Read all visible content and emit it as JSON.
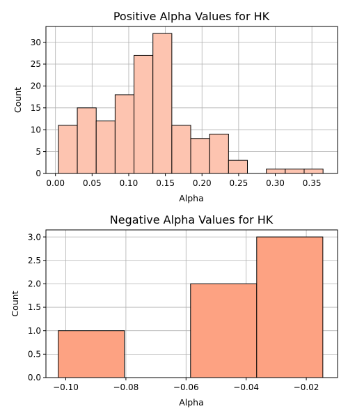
{
  "chart_data": [
    {
      "type": "bar",
      "title": "Positive Alpha Values for HK",
      "xlabel": "Alpha",
      "ylabel": "Count",
      "xlim": [
        -0.013,
        0.385
      ],
      "ylim": [
        0,
        33.6
      ],
      "grid": true,
      "bar_color": "#fdc4b0",
      "edge_color": "#000000",
      "x_ticks": [
        "0.00",
        "0.05",
        "0.10",
        "0.15",
        "0.20",
        "0.25",
        "0.30",
        "0.35"
      ],
      "x_tick_values": [
        0.0,
        0.05,
        0.1,
        0.15,
        0.2,
        0.25,
        0.3,
        0.35
      ],
      "y_ticks": [
        "0",
        "5",
        "10",
        "15",
        "20",
        "25",
        "30"
      ],
      "y_tick_values": [
        0,
        5,
        10,
        15,
        20,
        25,
        30
      ],
      "bins": [
        {
          "x0": 0.004,
          "x1": 0.0298,
          "count": 11
        },
        {
          "x0": 0.0298,
          "x1": 0.0556,
          "count": 15
        },
        {
          "x0": 0.0556,
          "x1": 0.0814,
          "count": 12
        },
        {
          "x0": 0.0814,
          "x1": 0.1072,
          "count": 18
        },
        {
          "x0": 0.1072,
          "x1": 0.133,
          "count": 27
        },
        {
          "x0": 0.133,
          "x1": 0.1588,
          "count": 32
        },
        {
          "x0": 0.1588,
          "x1": 0.1846,
          "count": 11
        },
        {
          "x0": 0.1846,
          "x1": 0.2104,
          "count": 8
        },
        {
          "x0": 0.2104,
          "x1": 0.2362,
          "count": 9
        },
        {
          "x0": 0.2362,
          "x1": 0.262,
          "count": 3
        },
        {
          "x0": 0.262,
          "x1": 0.2878,
          "count": 0
        },
        {
          "x0": 0.2878,
          "x1": 0.3136,
          "count": 1
        },
        {
          "x0": 0.3136,
          "x1": 0.3394,
          "count": 1
        },
        {
          "x0": 0.3394,
          "x1": 0.3652,
          "count": 1
        }
      ]
    },
    {
      "type": "bar",
      "title": "Negative Alpha Values for HK",
      "xlabel": "Alpha",
      "ylabel": "Count",
      "xlim": [
        -0.1066,
        -0.0096
      ],
      "ylim": [
        0,
        3.15
      ],
      "grid": true,
      "bar_color": "#fda282",
      "edge_color": "#000000",
      "x_ticks": [
        "−0.10",
        "−0.08",
        "−0.06",
        "−0.04",
        "−0.02"
      ],
      "x_tick_values": [
        -0.1,
        -0.08,
        -0.06,
        -0.04,
        -0.02
      ],
      "y_ticks": [
        "0.0",
        "0.5",
        "1.0",
        "1.5",
        "2.0",
        "2.5",
        "3.0"
      ],
      "y_tick_values": [
        0.0,
        0.5,
        1.0,
        1.5,
        2.0,
        2.5,
        3.0
      ],
      "bins": [
        {
          "x0": -0.1025,
          "x1": -0.0805,
          "count": 1
        },
        {
          "x0": -0.0805,
          "x1": -0.0585,
          "count": 0
        },
        {
          "x0": -0.0585,
          "x1": -0.0365,
          "count": 2
        },
        {
          "x0": -0.0365,
          "x1": -0.0145,
          "count": 3
        }
      ]
    }
  ]
}
